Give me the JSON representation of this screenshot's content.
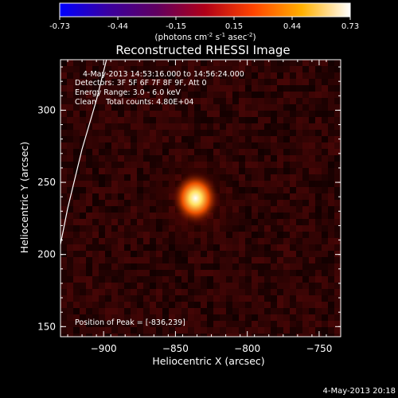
{
  "chart_data": {
    "type": "heatmap",
    "title": "Reconstructed RHESSI Image",
    "xlabel": "Heliocentric X (arcsec)",
    "ylabel": "Heliocentric Y (arcsec)",
    "xlim": [
      -930,
      -735
    ],
    "ylim": [
      143,
      335
    ],
    "xticks": [
      -900,
      -850,
      -800,
      -750
    ],
    "yticks": [
      150,
      200,
      250,
      300
    ],
    "grid": false,
    "colorbar": {
      "min": -0.73,
      "max": 0.73,
      "ticks": [
        "-0.73",
        "-0.44",
        "-0.15",
        "0.15",
        "0.44",
        "0.73"
      ],
      "unit_label": "(photons cm",
      "unit_sup1": "-2",
      "unit_mid": " s",
      "unit_sup2": "-1",
      "unit_mid2": " asec",
      "unit_sup3": "-2",
      "unit_end": ")",
      "stops": [
        "#0000ff",
        "#3a00a0",
        "#600060",
        "#b00018",
        "#ff4400",
        "#ffb000",
        "#ffffff"
      ]
    },
    "annotations": {
      "time_range": "4-May-2013 14:53:16.000 to 14:56:24.000",
      "detectors": "Detectors: 3F 5F 6F 7F 8F 9F, Att 0",
      "energy": "Energy Range: 3.0 - 6.0 keV",
      "clean": "Clean    Total counts: 4.80E+04",
      "peak": "Position of Peak = [-836,239]"
    },
    "peak": {
      "x": -836,
      "y": 239,
      "value": 0.73
    },
    "limb": [
      [
        -930,
        207
      ],
      [
        -925,
        232
      ],
      [
        -915,
        273
      ],
      [
        -905,
        307
      ],
      [
        -898,
        335
      ]
    ],
    "timestamp": "4-May-2013 20:18"
  }
}
